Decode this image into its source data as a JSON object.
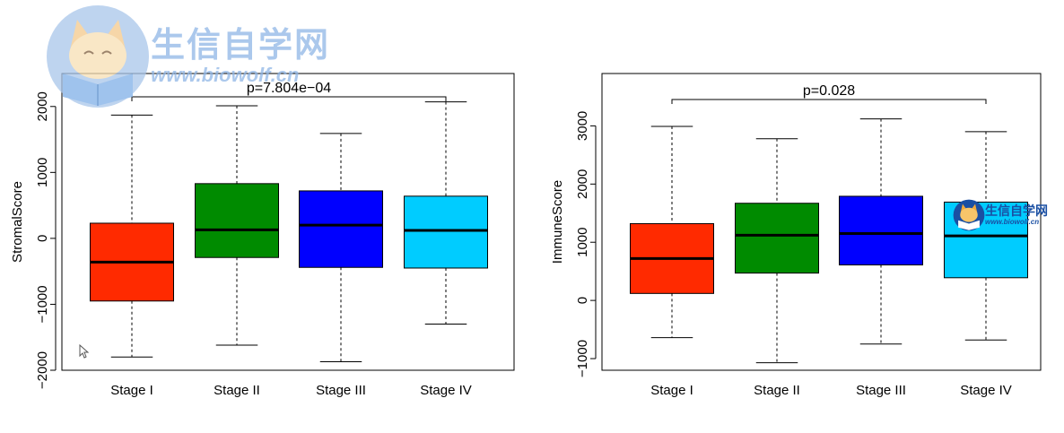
{
  "watermark": {
    "brand_cn": "生信自学网",
    "url": "www.biowolf.cn"
  },
  "chart_data": [
    {
      "type": "box",
      "ylabel": "StromalScore",
      "xlabel": "",
      "ylim": [
        -2000,
        2500
      ],
      "yticks": [
        -2000,
        -1000,
        0,
        1000,
        2000
      ],
      "categories": [
        "Stage I",
        "Stage II",
        "Stage III",
        "Stage IV"
      ],
      "p_value": "p=7.804e−04",
      "bracket": [
        "Stage I",
        "Stage IV"
      ],
      "colors": [
        "#ff2a00",
        "#008b00",
        "#0000ff",
        "#00ccff"
      ],
      "boxes": [
        {
          "whisker_low": -1800,
          "q1": -950,
          "median": -360,
          "q3": 230,
          "whisker_high": 1870
        },
        {
          "whisker_low": -1620,
          "q1": -290,
          "median": 130,
          "q3": 830,
          "whisker_high": 2010
        },
        {
          "whisker_low": -1870,
          "q1": -440,
          "median": 200,
          "q3": 720,
          "whisker_high": 1590
        },
        {
          "whisker_low": -1300,
          "q1": -450,
          "median": 120,
          "q3": 640,
          "whisker_high": 2070
        }
      ]
    },
    {
      "type": "box",
      "ylabel": "ImmuneScore",
      "xlabel": "",
      "ylim": [
        -1200,
        3900
      ],
      "yticks": [
        -1000,
        0,
        1000,
        2000,
        3000
      ],
      "categories": [
        "Stage I",
        "Stage II",
        "Stage III",
        "Stage IV"
      ],
      "p_value": "p=0.028",
      "bracket": [
        "Stage I",
        "Stage IV"
      ],
      "colors": [
        "#ff2a00",
        "#008b00",
        "#0000ff",
        "#00ccff"
      ],
      "boxes": [
        {
          "whisker_low": -640,
          "q1": 120,
          "median": 720,
          "q3": 1320,
          "whisker_high": 2990
        },
        {
          "whisker_low": -1070,
          "q1": 470,
          "median": 1120,
          "q3": 1670,
          "whisker_high": 2780
        },
        {
          "whisker_low": -750,
          "q1": 610,
          "median": 1150,
          "q3": 1790,
          "whisker_high": 3120
        },
        {
          "whisker_low": -680,
          "q1": 390,
          "median": 1110,
          "q3": 1690,
          "whisker_high": 2900
        }
      ]
    }
  ]
}
